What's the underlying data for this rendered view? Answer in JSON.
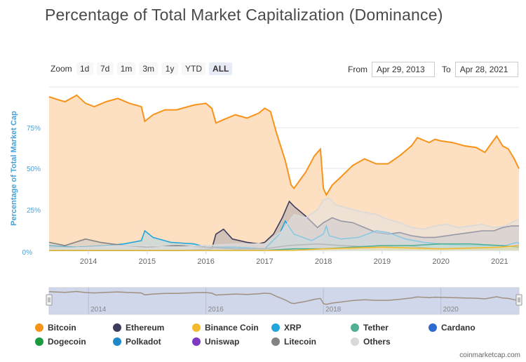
{
  "title": "Percentage of Total Market Capitalization (Dominance)",
  "zoom": {
    "label": "Zoom",
    "buttons": [
      "1d",
      "7d",
      "1m",
      "3m",
      "1y",
      "YTD",
      "ALL"
    ],
    "active": "ALL"
  },
  "range": {
    "from_label": "From",
    "from_value": "Apr 29, 2013",
    "to_label": "To",
    "to_value": "Apr 28, 2021"
  },
  "credit": "coinmarketcap.com",
  "colors": {
    "bitcoin": "#f7931a",
    "ethereum": "#3c3c5d",
    "binance_coin": "#f3ba2f",
    "xrp": "#23a6db",
    "tether": "#50af95",
    "cardano": "#2f6ad1",
    "dogecoin": "#1c9a3f",
    "polkadot": "#1e88c9",
    "uniswap": "#7d3ac1",
    "litecoin": "#838383",
    "others": "#d9d9d9",
    "axis_label": "#4aa1d8"
  },
  "chart_data": {
    "type": "area",
    "ylabel": "Percentage of Total Market Cap",
    "yticks": [
      "0%",
      "25%",
      "50%",
      "75%"
    ],
    "ylim": [
      0,
      100
    ],
    "xlim": [
      2013.33,
      2021.33
    ],
    "xticks": [
      "2014",
      "2015",
      "2016",
      "2017",
      "2018",
      "2019",
      "2020",
      "2021"
    ],
    "navigator_xticks": [
      "2014",
      "2016",
      "2018",
      "2020"
    ],
    "legend": [
      "Bitcoin",
      "Ethereum",
      "Binance Coin",
      "XRP",
      "Tether",
      "Cardano",
      "Dogecoin",
      "Polkadot",
      "Uniswap",
      "Litecoin",
      "Others"
    ],
    "series": [
      {
        "name": "Bitcoin",
        "color_key": "bitcoin",
        "points": [
          [
            2013.33,
            94
          ],
          [
            2013.5,
            92
          ],
          [
            2013.6,
            91
          ],
          [
            2013.8,
            95
          ],
          [
            2013.95,
            90
          ],
          [
            2014.1,
            88
          ],
          [
            2014.3,
            91
          ],
          [
            2014.5,
            93
          ],
          [
            2014.7,
            90
          ],
          [
            2014.9,
            88
          ],
          [
            2014.96,
            79
          ],
          [
            2015.1,
            83
          ],
          [
            2015.3,
            86
          ],
          [
            2015.5,
            86
          ],
          [
            2015.8,
            89
          ],
          [
            2016.0,
            90
          ],
          [
            2016.1,
            87
          ],
          [
            2016.17,
            78
          ],
          [
            2016.3,
            80
          ],
          [
            2016.5,
            83
          ],
          [
            2016.7,
            81
          ],
          [
            2016.9,
            84
          ],
          [
            2017.0,
            87
          ],
          [
            2017.1,
            85
          ],
          [
            2017.2,
            72
          ],
          [
            2017.35,
            55
          ],
          [
            2017.45,
            40
          ],
          [
            2017.5,
            38
          ],
          [
            2017.7,
            48
          ],
          [
            2017.85,
            58
          ],
          [
            2017.95,
            62
          ],
          [
            2018.0,
            38
          ],
          [
            2018.05,
            34
          ],
          [
            2018.15,
            40
          ],
          [
            2018.3,
            45
          ],
          [
            2018.5,
            52
          ],
          [
            2018.7,
            56
          ],
          [
            2018.9,
            53
          ],
          [
            2019.1,
            53
          ],
          [
            2019.3,
            58
          ],
          [
            2019.5,
            64
          ],
          [
            2019.6,
            69
          ],
          [
            2019.8,
            66
          ],
          [
            2019.9,
            68
          ],
          [
            2020.0,
            67
          ],
          [
            2020.2,
            66
          ],
          [
            2020.4,
            64
          ],
          [
            2020.6,
            63
          ],
          [
            2020.75,
            60
          ],
          [
            2020.85,
            65
          ],
          [
            2020.95,
            70
          ],
          [
            2021.05,
            64
          ],
          [
            2021.15,
            62
          ],
          [
            2021.25,
            56
          ],
          [
            2021.33,
            50
          ]
        ]
      },
      {
        "name": "Ethereum",
        "color_key": "ethereum",
        "points": [
          [
            2013.33,
            0
          ],
          [
            2015.6,
            0
          ],
          [
            2016.1,
            1
          ],
          [
            2016.17,
            10
          ],
          [
            2016.3,
            13
          ],
          [
            2016.45,
            7
          ],
          [
            2016.7,
            5
          ],
          [
            2016.9,
            4
          ],
          [
            2017.0,
            5
          ],
          [
            2017.15,
            10
          ],
          [
            2017.3,
            20
          ],
          [
            2017.42,
            30
          ],
          [
            2017.5,
            27
          ],
          [
            2017.7,
            21
          ],
          [
            2017.9,
            14
          ],
          [
            2018.0,
            17
          ],
          [
            2018.15,
            20
          ],
          [
            2018.3,
            18
          ],
          [
            2018.5,
            17
          ],
          [
            2018.7,
            14
          ],
          [
            2018.9,
            11
          ],
          [
            2019.1,
            10
          ],
          [
            2019.3,
            11
          ],
          [
            2019.5,
            9
          ],
          [
            2019.7,
            8
          ],
          [
            2019.9,
            8
          ],
          [
            2020.1,
            9
          ],
          [
            2020.3,
            10
          ],
          [
            2020.5,
            11
          ],
          [
            2020.7,
            12
          ],
          [
            2020.9,
            12
          ],
          [
            2021.05,
            14
          ],
          [
            2021.2,
            15
          ],
          [
            2021.33,
            15
          ]
        ]
      },
      {
        "name": "XRP",
        "color_key": "xrp",
        "points": [
          [
            2013.33,
            3
          ],
          [
            2013.8,
            2
          ],
          [
            2014.3,
            3
          ],
          [
            2014.6,
            4
          ],
          [
            2014.9,
            6
          ],
          [
            2014.96,
            12
          ],
          [
            2015.1,
            8
          ],
          [
            2015.4,
            5
          ],
          [
            2015.8,
            4
          ],
          [
            2016.0,
            2
          ],
          [
            2016.5,
            2
          ],
          [
            2017.0,
            1
          ],
          [
            2017.25,
            10
          ],
          [
            2017.35,
            18
          ],
          [
            2017.5,
            10
          ],
          [
            2017.8,
            6
          ],
          [
            2018.0,
            10
          ],
          [
            2018.05,
            15
          ],
          [
            2018.1,
            9
          ],
          [
            2018.3,
            7
          ],
          [
            2018.6,
            8
          ],
          [
            2018.9,
            12
          ],
          [
            2019.1,
            11
          ],
          [
            2019.4,
            7
          ],
          [
            2019.7,
            5
          ],
          [
            2020.0,
            4
          ],
          [
            2020.4,
            3
          ],
          [
            2020.9,
            3
          ],
          [
            2021.1,
            3
          ],
          [
            2021.3,
            5
          ],
          [
            2021.33,
            4
          ]
        ]
      },
      {
        "name": "Litecoin",
        "color_key": "litecoin",
        "points": [
          [
            2013.33,
            5
          ],
          [
            2013.6,
            3
          ],
          [
            2013.95,
            7
          ],
          [
            2014.2,
            5
          ],
          [
            2014.6,
            3
          ],
          [
            2015.0,
            2
          ],
          [
            2015.5,
            3
          ],
          [
            2016.0,
            2
          ],
          [
            2016.5,
            1
          ],
          [
            2017.0,
            1
          ],
          [
            2017.4,
            3
          ],
          [
            2017.9,
            4
          ],
          [
            2018.3,
            3
          ],
          [
            2018.9,
            2
          ],
          [
            2019.4,
            3
          ],
          [
            2019.9,
            1
          ],
          [
            2020.5,
            1
          ],
          [
            2021.33,
            1
          ]
        ]
      },
      {
        "name": "Others",
        "color_key": "others",
        "points": [
          [
            2013.33,
            1
          ],
          [
            2014.0,
            2
          ],
          [
            2014.5,
            3
          ],
          [
            2015.0,
            3
          ],
          [
            2015.5,
            2
          ],
          [
            2016.0,
            3
          ],
          [
            2016.5,
            4
          ],
          [
            2017.0,
            4
          ],
          [
            2017.3,
            12
          ],
          [
            2017.5,
            22
          ],
          [
            2017.7,
            20
          ],
          [
            2017.9,
            25
          ],
          [
            2018.0,
            31
          ],
          [
            2018.1,
            32
          ],
          [
            2018.2,
            28
          ],
          [
            2018.4,
            26
          ],
          [
            2018.6,
            24
          ],
          [
            2018.9,
            22
          ],
          [
            2019.1,
            19
          ],
          [
            2019.3,
            17
          ],
          [
            2019.5,
            14
          ],
          [
            2019.7,
            13
          ],
          [
            2019.9,
            15
          ],
          [
            2020.1,
            16
          ],
          [
            2020.3,
            14
          ],
          [
            2020.5,
            15
          ],
          [
            2020.7,
            16
          ],
          [
            2020.9,
            14
          ],
          [
            2021.1,
            15
          ],
          [
            2021.25,
            18
          ],
          [
            2021.33,
            19
          ]
        ]
      },
      {
        "name": "Tether",
        "color_key": "tether",
        "points": [
          [
            2013.33,
            0
          ],
          [
            2017.0,
            0
          ],
          [
            2017.5,
            1
          ],
          [
            2018.0,
            1
          ],
          [
            2018.5,
            2
          ],
          [
            2019.0,
            3
          ],
          [
            2019.5,
            3
          ],
          [
            2020.0,
            4
          ],
          [
            2020.5,
            4
          ],
          [
            2021.0,
            3
          ],
          [
            2021.33,
            2
          ]
        ]
      },
      {
        "name": "Binance Coin",
        "color_key": "binance_coin",
        "points": [
          [
            2013.33,
            0
          ],
          [
            2017.5,
            0
          ],
          [
            2018.0,
            1
          ],
          [
            2019.0,
            2
          ],
          [
            2020.0,
            1
          ],
          [
            2021.0,
            2
          ],
          [
            2021.33,
            3
          ]
        ]
      }
    ]
  }
}
